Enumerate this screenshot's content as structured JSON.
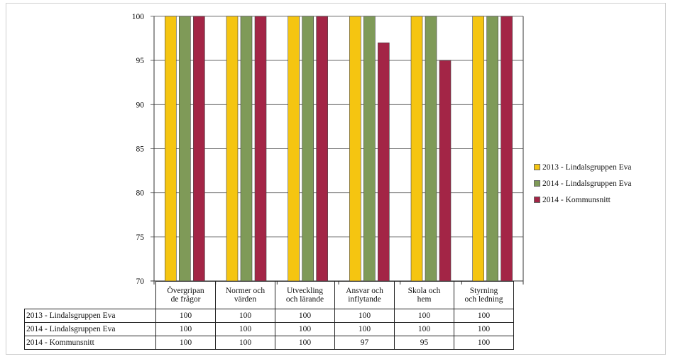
{
  "colors": {
    "series_2013": "#f5c511",
    "series_2014": "#7f9a58",
    "series_kommun": "#a32546",
    "axis": "#333333",
    "grid": "#7a7a7a"
  },
  "legend": {
    "items": [
      {
        "label": "2013 - Lindalsgruppen Eva",
        "color": "#f5c511"
      },
      {
        "label": "2014 - Lindalsgruppen Eva",
        "color": "#7f9a58"
      },
      {
        "label": "2014 - Kommunsnitt",
        "color": "#a32546"
      }
    ],
    "placement": "right"
  },
  "chart_data": {
    "type": "bar",
    "categories": [
      "Övergripan de frågor",
      "Normer och värden",
      "Utveckling och lärande",
      "Ansvar och inflytande",
      "Skola och hem",
      "Styrning och ledning"
    ],
    "series": [
      {
        "name": "2013 - Lindalsgruppen Eva",
        "values": [
          100,
          100,
          100,
          100,
          100,
          100
        ]
      },
      {
        "name": "2014 - Lindalsgruppen Eva",
        "values": [
          100,
          100,
          100,
          100,
          100,
          100
        ]
      },
      {
        "name": "2014 - Kommunsnitt",
        "values": [
          100,
          100,
          100,
          97,
          95,
          100
        ]
      }
    ],
    "title": "",
    "xlabel": "",
    "ylabel": "",
    "ylim": [
      70,
      100
    ],
    "yticks": [
      "100",
      "95",
      "90",
      "85",
      "80",
      "75",
      "70"
    ],
    "grid": true,
    "data_table": true
  },
  "table": {
    "header": [
      [
        "Övergripan",
        "de frågor"
      ],
      [
        "Normer och",
        "värden"
      ],
      [
        "Utveckling",
        "och lärande"
      ],
      [
        "Ansvar och",
        "inflytande"
      ],
      [
        "Skola och",
        "hem"
      ],
      [
        "Styrning",
        "och ledning"
      ]
    ],
    "rows": [
      {
        "label": "2013 - Lindalsgruppen Eva",
        "cells": [
          "100",
          "100",
          "100",
          "100",
          "100",
          "100"
        ]
      },
      {
        "label": "2014 - Lindalsgruppen Eva",
        "cells": [
          "100",
          "100",
          "100",
          "100",
          "100",
          "100"
        ]
      },
      {
        "label": "2014 - Kommunsnitt",
        "cells": [
          "100",
          "100",
          "100",
          "97",
          "95",
          "100"
        ]
      }
    ]
  }
}
